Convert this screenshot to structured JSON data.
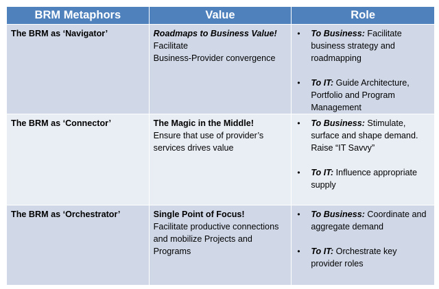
{
  "header": {
    "col1": "BRM Metaphors",
    "col2": "Value",
    "col3": "Role"
  },
  "rows": [
    {
      "metaphor": "The BRM as ‘Navigator’",
      "value_title": "Roadmaps to Business Value!",
      "value_text_1": "Facilitate",
      "value_text_2": "Business-Provider convergence",
      "roles": [
        {
          "lead": "To Business:",
          "text": " Facilitate business strategy and roadmapping"
        },
        {
          "lead": "To IT:",
          "text": " Guide Architecture, Portfolio and Program Management"
        }
      ]
    },
    {
      "metaphor": "The BRM as ‘Connector’",
      "value_title": "The Magic in the Middle!",
      "value_text": "Ensure that use of provider’s services drives value",
      "roles": [
        {
          "lead": "To Business:",
          "text": " Stimulate, surface and shape demand. Raise “IT Savvy”"
        },
        {
          "lead": "To IT:",
          "text": " Influence appropriate supply"
        }
      ]
    },
    {
      "metaphor": "The BRM as ‘Orchestrator’",
      "value_title": "Single Point of Focus!",
      "value_text": "Facilitate productive connections and mobilize Projects and Programs",
      "roles": [
        {
          "lead": "To Business:",
          "text": " Coordinate and aggregate demand"
        },
        {
          "lead": "To IT:",
          "text": " Orchestrate key provider roles"
        }
      ]
    }
  ],
  "bullet_glyph": "•",
  "colors": {
    "header": "#4f81bd",
    "row_dark": "#d0d8e8",
    "row_light": "#e9edf4"
  }
}
